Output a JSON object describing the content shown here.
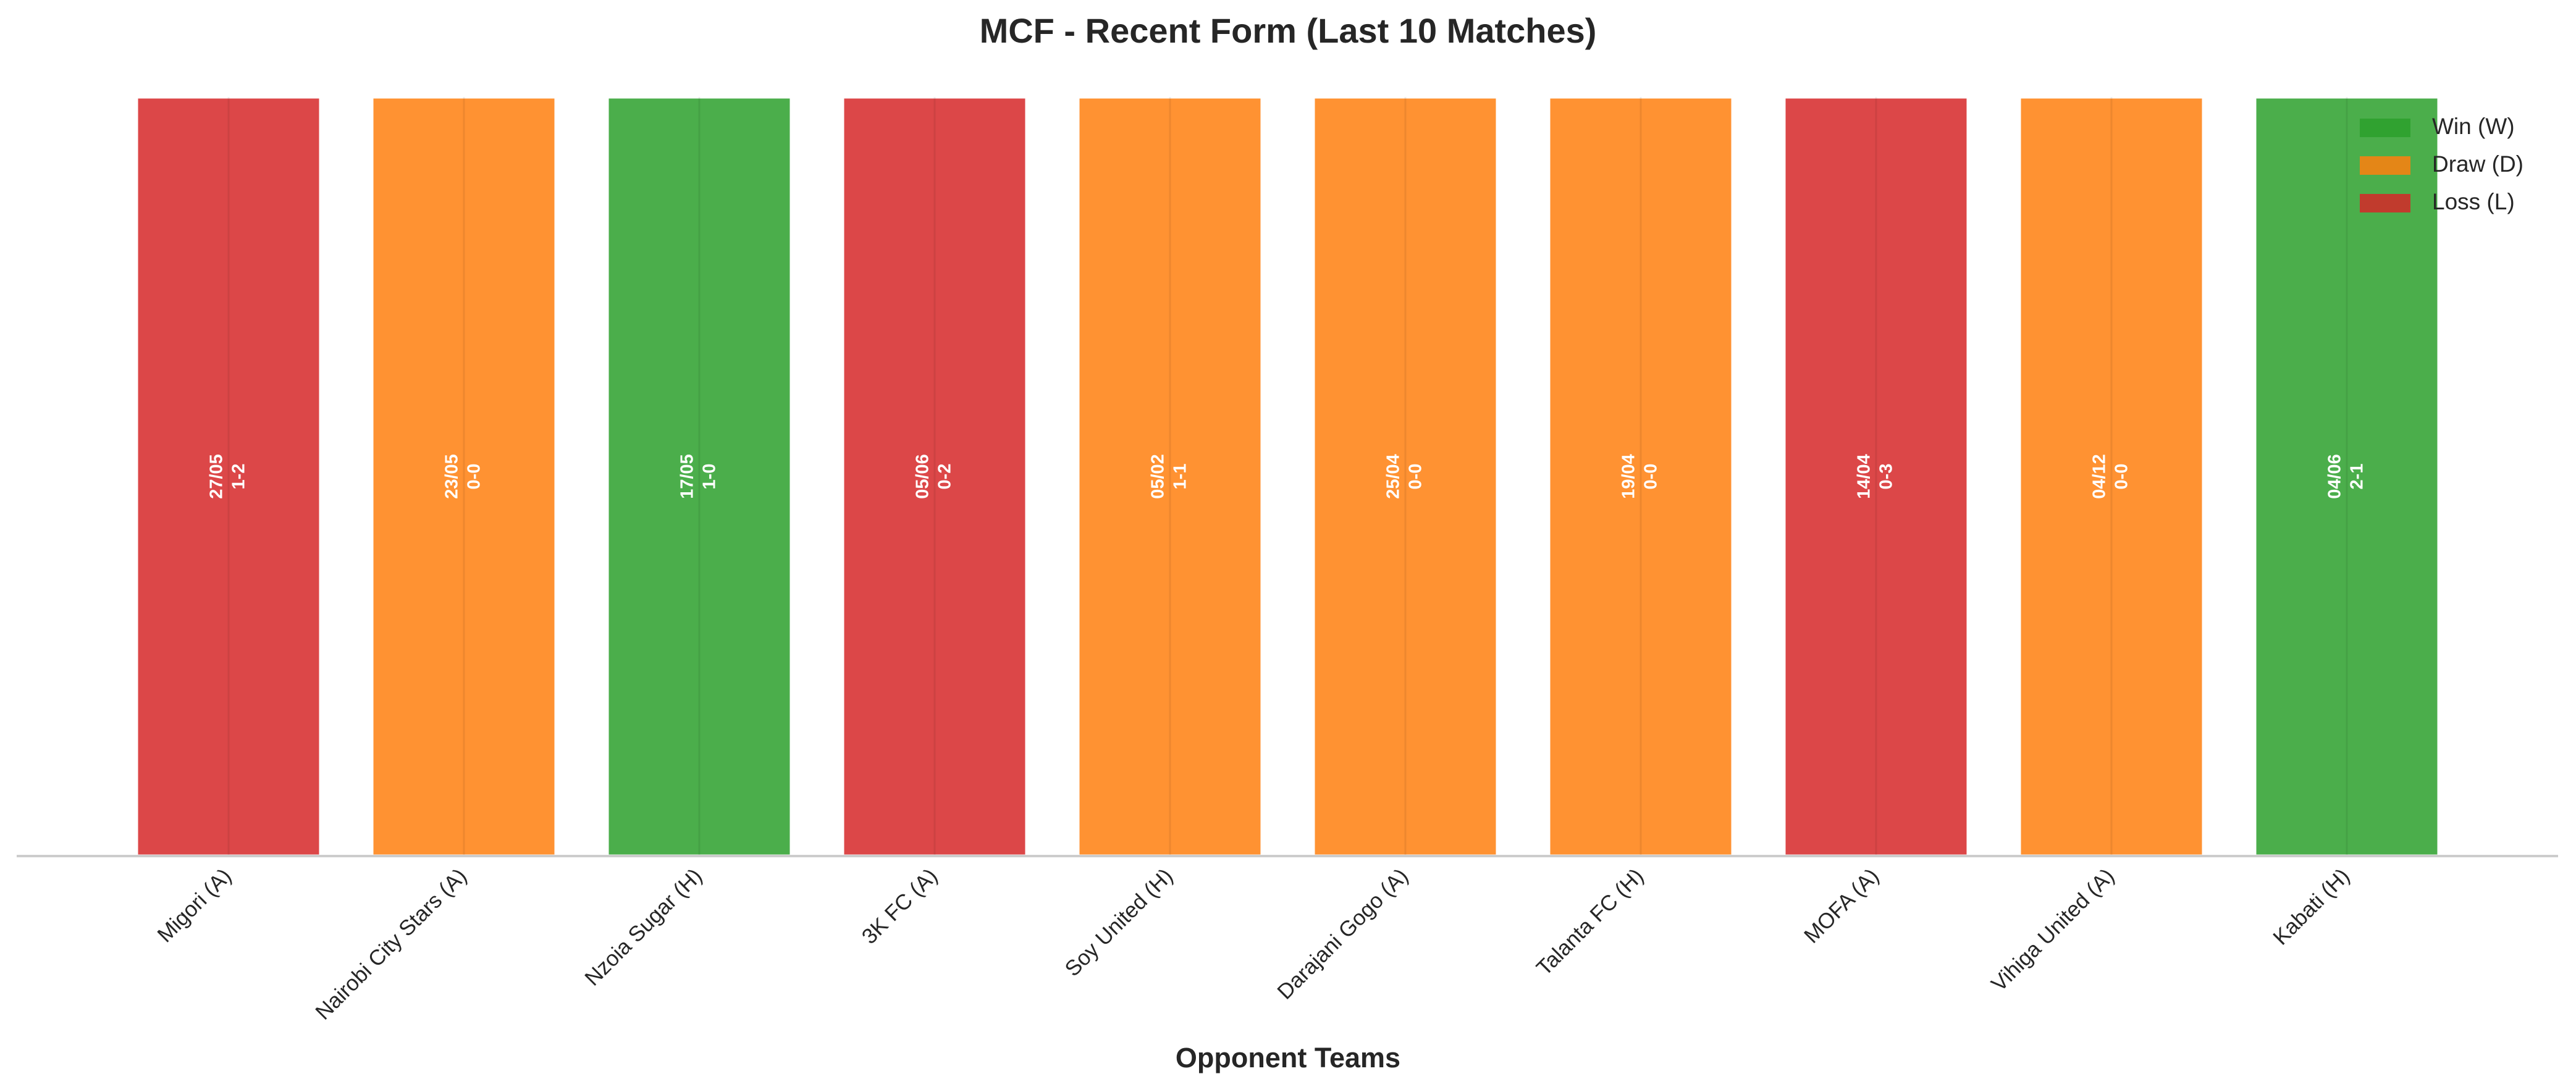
{
  "chart_data": {
    "type": "bar",
    "title": "MCF - Recent Form (Last 10 Matches)",
    "x_label": "Opponent Teams",
    "categories": [
      "Migori (A)",
      "Nairobi City Stars (A)",
      "Nzoia Sugar (H)",
      "3K FC (A)",
      "Soy United (H)",
      "Darajani Gogo (A)",
      "Talanta FC (H)",
      "MOFA (A)",
      "Vihiga United (A)",
      "Kabati (H)"
    ],
    "dates": [
      "27/05",
      "23/05",
      "17/05",
      "05/06",
      "05/02",
      "25/04",
      "19/04",
      "14/04",
      "04/12",
      "04/06"
    ],
    "scores": [
      "1-2",
      "0-0",
      "1-0",
      "0-2",
      "1-1",
      "0-0",
      "0-0",
      "0-3",
      "0-0",
      "2-1"
    ],
    "series": [
      {
        "name": "Win (W)",
        "color": "#2ca02c",
        "values": [
          null,
          null,
          1,
          null,
          null,
          null,
          null,
          null,
          null,
          1
        ]
      },
      {
        "name": "Draw (D)",
        "color": "#ff7f0e",
        "values": [
          null,
          1,
          null,
          null,
          1,
          1,
          1,
          null,
          1,
          null
        ]
      },
      {
        "name": "Loss (L)",
        "color": "#d62728",
        "values": [
          1,
          null,
          null,
          1,
          null,
          null,
          null,
          1,
          null,
          null
        ]
      }
    ],
    "ylim": [
      0,
      1
    ],
    "grid": true,
    "legend": "upper right"
  }
}
